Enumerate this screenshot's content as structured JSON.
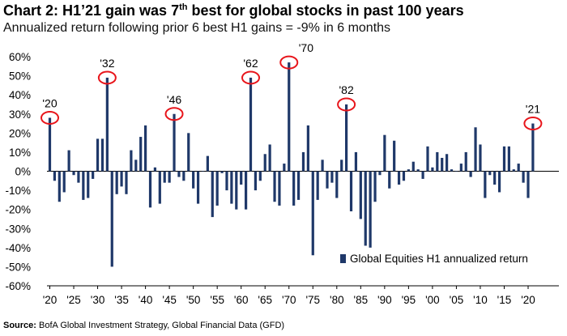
{
  "title": {
    "prefix": "Chart 2:  H1’21 gain was 7",
    "superscript": "th",
    "suffix": " best for global stocks in past 100 years"
  },
  "subtitle": "Annualized return following prior 6 best H1 gains = -9% in 6 months",
  "source": {
    "label": "Source:",
    "text": "  BofA Global Investment Strategy, Global Financial Data (GFD)"
  },
  "chart_data": {
    "type": "bar",
    "series": [
      {
        "name": "Global Equities H1 annualized return",
        "color": "#1f3869"
      }
    ],
    "x": [
      1920,
      1921,
      1922,
      1923,
      1924,
      1925,
      1926,
      1927,
      1928,
      1929,
      1930,
      1931,
      1932,
      1933,
      1934,
      1935,
      1936,
      1937,
      1938,
      1939,
      1940,
      1941,
      1942,
      1943,
      1944,
      1945,
      1946,
      1947,
      1948,
      1949,
      1950,
      1951,
      1952,
      1953,
      1954,
      1955,
      1956,
      1957,
      1958,
      1959,
      1960,
      1961,
      1962,
      1963,
      1964,
      1965,
      1966,
      1967,
      1968,
      1969,
      1970,
      1971,
      1972,
      1973,
      1974,
      1975,
      1976,
      1977,
      1978,
      1979,
      1980,
      1981,
      1982,
      1983,
      1984,
      1985,
      1986,
      1987,
      1988,
      1989,
      1990,
      1991,
      1992,
      1993,
      1994,
      1995,
      1996,
      1997,
      1998,
      1999,
      2000,
      2001,
      2002,
      2003,
      2004,
      2005,
      2006,
      2007,
      2008,
      2009,
      2010,
      2011,
      2012,
      2013,
      2014,
      2015,
      2016,
      2017,
      2018,
      2019,
      2020,
      2021
    ],
    "values": [
      28,
      -5,
      -16,
      -11,
      11,
      -2,
      -6,
      -15,
      -14,
      -4,
      17,
      17,
      49,
      -50,
      -12,
      -8,
      -12,
      11,
      6,
      18,
      24,
      -19,
      2,
      -17,
      -6,
      -6,
      30,
      -3,
      -5,
      20,
      -9,
      -17,
      0,
      8,
      -24,
      -18,
      -1,
      -10,
      -17,
      -20,
      -7,
      -20,
      49,
      -10,
      -5,
      9,
      14,
      -16,
      -18,
      4,
      57,
      -18,
      -15,
      10,
      24,
      -44,
      -15,
      6,
      -9,
      -6,
      -14,
      6,
      35,
      -21,
      10,
      -25,
      -39,
      -40,
      -16,
      -2,
      19,
      -9,
      16,
      -7,
      -5,
      1,
      5,
      1,
      -4,
      13,
      2,
      10,
      7,
      9,
      1,
      0,
      4,
      10,
      -3,
      23,
      14,
      -14,
      -2,
      -7,
      -11,
      13,
      13,
      1,
      4,
      -6,
      -14,
      25
    ],
    "ylim": [
      -60,
      60
    ],
    "yticks": [
      60,
      50,
      40,
      30,
      20,
      10,
      0,
      -10,
      -20,
      -30,
      -40,
      -50,
      -60
    ],
    "ytick_labels": [
      "60%",
      "50%",
      "40%",
      "30%",
      "20%",
      "10%",
      "0%",
      "-10%",
      "-20%",
      "-30%",
      "-40%",
      "-50%",
      "-60%"
    ],
    "xticks": [
      1920,
      1925,
      1930,
      1935,
      1940,
      1945,
      1950,
      1955,
      1960,
      1965,
      1970,
      1975,
      1980,
      1985,
      1990,
      1995,
      2000,
      2005,
      2010,
      2015,
      2020
    ],
    "xtick_labels": [
      "'20",
      "'25",
      "'30",
      "'35",
      "'40",
      "'45",
      "'50",
      "'55",
      "'60",
      "'65",
      "'70",
      "'75",
      "'80",
      "'85",
      "'90",
      "'95",
      "'00",
      "'05",
      "'10",
      "'15",
      "'20"
    ],
    "legend": {
      "label": "Global Equities H1 annualized return",
      "position": "bottom-right"
    },
    "annotations": [
      {
        "year": 1920,
        "value": 28,
        "label": "'20"
      },
      {
        "year": 1932,
        "value": 49,
        "label": "'32"
      },
      {
        "year": 1946,
        "value": 30,
        "label": "'46"
      },
      {
        "year": 1962,
        "value": 49,
        "label": "'62"
      },
      {
        "year": 1970,
        "value": 57,
        "label": "'70"
      },
      {
        "year": 1982,
        "value": 35,
        "label": "'82"
      },
      {
        "year": 2021,
        "value": 25,
        "label": "'21"
      }
    ],
    "highlight_color": "#e8151b"
  }
}
